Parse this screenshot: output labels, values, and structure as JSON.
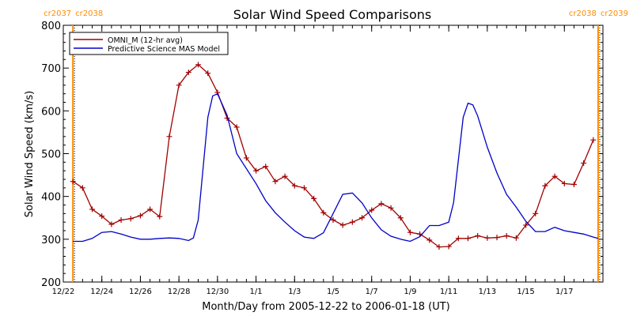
{
  "chart_data": {
    "type": "line",
    "title": "Solar Wind Speed Comparisons",
    "xlabel": "Month/Day from 2005-12-22 to 2006-01-18 (UT)",
    "ylabel": "Solar Wind Speed (km/s)",
    "xlim": [
      "2005-12-22",
      "2006-01-19"
    ],
    "ylim": [
      200,
      800
    ],
    "yticks": [
      200,
      300,
      400,
      500,
      600,
      700,
      800
    ],
    "xticks": [
      {
        "date": "2005-12-22",
        "label": "12/22"
      },
      {
        "date": "2005-12-24",
        "label": "12/24"
      },
      {
        "date": "2005-12-26",
        "label": "12/26"
      },
      {
        "date": "2005-12-28",
        "label": "12/28"
      },
      {
        "date": "2005-12-30",
        "label": "12/30"
      },
      {
        "date": "2006-01-01",
        "label": "1/1"
      },
      {
        "date": "2006-01-03",
        "label": "1/3"
      },
      {
        "date": "2006-01-05",
        "label": "1/5"
      },
      {
        "date": "2006-01-07",
        "label": "1/7"
      },
      {
        "date": "2006-01-09",
        "label": "1/9"
      },
      {
        "date": "2006-01-11",
        "label": "1/11"
      },
      {
        "date": "2006-01-13",
        "label": "1/13"
      },
      {
        "date": "2006-01-15",
        "label": "1/15"
      },
      {
        "date": "2006-01-17",
        "label": "1/17"
      }
    ],
    "grid": false,
    "legend": "top-left",
    "rotation_markers": [
      {
        "date": "2005-12-22 12:00",
        "label_left": "cr2037",
        "label_right": "cr2038",
        "color": "#ff8c00"
      },
      {
        "date": "2006-01-18 18:00",
        "label_left": "cr2038",
        "label_right": "cr2039",
        "color": "#ff8c00"
      }
    ],
    "series": [
      {
        "name": "OMNI_M (12-hr avg)",
        "color": "#a00000",
        "marker": "+",
        "points": [
          [
            "2005-12-22 12:00",
            435
          ],
          [
            "2005-12-23 00:00",
            420
          ],
          [
            "2005-12-23 12:00",
            370
          ],
          [
            "2005-12-24 00:00",
            354
          ],
          [
            "2005-12-24 12:00",
            335
          ],
          [
            "2005-12-25 00:00",
            345
          ],
          [
            "2005-12-25 12:00",
            348
          ],
          [
            "2005-12-26 00:00",
            355
          ],
          [
            "2005-12-26 12:00",
            370
          ],
          [
            "2005-12-27 00:00",
            353
          ],
          [
            "2005-12-27 12:00",
            540
          ],
          [
            "2005-12-28 00:00",
            660
          ],
          [
            "2005-12-28 12:00",
            690
          ],
          [
            "2005-12-29 00:00",
            708
          ],
          [
            "2005-12-29 12:00",
            688
          ],
          [
            "2005-12-30 00:00",
            643
          ],
          [
            "2005-12-30 12:00",
            583
          ],
          [
            "2005-12-31 00:00",
            562
          ],
          [
            "2005-12-31 12:00",
            490
          ],
          [
            "2006-01-01 00:00",
            460
          ],
          [
            "2006-01-01 12:00",
            470
          ],
          [
            "2006-01-02 00:00",
            435
          ],
          [
            "2006-01-02 12:00",
            447
          ],
          [
            "2006-01-03 00:00",
            425
          ],
          [
            "2006-01-03 12:00",
            420
          ],
          [
            "2006-01-04 00:00",
            395
          ],
          [
            "2006-01-04 12:00",
            362
          ],
          [
            "2006-01-05 00:00",
            345
          ],
          [
            "2006-01-05 12:00",
            333
          ],
          [
            "2006-01-06 00:00",
            340
          ],
          [
            "2006-01-06 12:00",
            350
          ],
          [
            "2006-01-07 00:00",
            368
          ],
          [
            "2006-01-07 12:00",
            383
          ],
          [
            "2006-01-08 00:00",
            373
          ],
          [
            "2006-01-08 12:00",
            350
          ],
          [
            "2006-01-09 00:00",
            316
          ],
          [
            "2006-01-09 12:00",
            312
          ],
          [
            "2006-01-10 00:00",
            298
          ],
          [
            "2006-01-10 12:00",
            282
          ],
          [
            "2006-01-11 00:00",
            283
          ],
          [
            "2006-01-11 12:00",
            302
          ],
          [
            "2006-01-12 00:00",
            302
          ],
          [
            "2006-01-12 12:00",
            308
          ],
          [
            "2006-01-13 00:00",
            303
          ],
          [
            "2006-01-13 12:00",
            304
          ],
          [
            "2006-01-14 00:00",
            308
          ],
          [
            "2006-01-14 12:00",
            303
          ],
          [
            "2006-01-15 00:00",
            333
          ],
          [
            "2006-01-15 12:00",
            360
          ],
          [
            "2006-01-16 00:00",
            425
          ],
          [
            "2006-01-16 12:00",
            447
          ],
          [
            "2006-01-17 00:00",
            430
          ],
          [
            "2006-01-17 12:00",
            428
          ],
          [
            "2006-01-18 00:00",
            478
          ],
          [
            "2006-01-18 12:00",
            532
          ]
        ]
      },
      {
        "name": "Predictive Science MAS Model",
        "color": "#0000c8",
        "marker": "none",
        "points": [
          [
            "2005-12-22 12:00",
            295
          ],
          [
            "2005-12-23 00:00",
            295
          ],
          [
            "2005-12-23 12:00",
            302
          ],
          [
            "2005-12-24 00:00",
            316
          ],
          [
            "2005-12-24 12:00",
            318
          ],
          [
            "2005-12-25 00:00",
            312
          ],
          [
            "2005-12-25 12:00",
            305
          ],
          [
            "2005-12-26 00:00",
            300
          ],
          [
            "2005-12-26 12:00",
            300
          ],
          [
            "2005-12-27 00:00",
            302
          ],
          [
            "2005-12-27 12:00",
            303
          ],
          [
            "2005-12-28 00:00",
            302
          ],
          [
            "2005-12-28 12:00",
            297
          ],
          [
            "2005-12-28 18:00",
            303
          ],
          [
            "2005-12-29 00:00",
            345
          ],
          [
            "2005-12-29 12:00",
            585
          ],
          [
            "2005-12-29 18:00",
            635
          ],
          [
            "2005-12-30 00:00",
            640
          ],
          [
            "2005-12-30 12:00",
            590
          ],
          [
            "2005-12-31 00:00",
            500
          ],
          [
            "2006-01-01 00:00",
            430
          ],
          [
            "2006-01-01 12:00",
            390
          ],
          [
            "2006-01-02 00:00",
            362
          ],
          [
            "2006-01-02 12:00",
            340
          ],
          [
            "2006-01-03 00:00",
            320
          ],
          [
            "2006-01-03 12:00",
            305
          ],
          [
            "2006-01-04 00:00",
            302
          ],
          [
            "2006-01-04 12:00",
            315
          ],
          [
            "2006-01-05 00:00",
            360
          ],
          [
            "2006-01-05 12:00",
            405
          ],
          [
            "2006-01-06 00:00",
            408
          ],
          [
            "2006-01-06 12:00",
            385
          ],
          [
            "2006-01-07 00:00",
            350
          ],
          [
            "2006-01-07 12:00",
            322
          ],
          [
            "2006-01-08 00:00",
            307
          ],
          [
            "2006-01-08 12:00",
            300
          ],
          [
            "2006-01-09 00:00",
            295
          ],
          [
            "2006-01-09 12:00",
            306
          ],
          [
            "2006-01-10 00:00",
            332
          ],
          [
            "2006-01-10 12:00",
            332
          ],
          [
            "2006-01-11 00:00",
            340
          ],
          [
            "2006-01-11 06:00",
            385
          ],
          [
            "2006-01-11 18:00",
            585
          ],
          [
            "2006-01-12 00:00",
            618
          ],
          [
            "2006-01-12 06:00",
            614
          ],
          [
            "2006-01-12 12:00",
            588
          ],
          [
            "2006-01-13 00:00",
            515
          ],
          [
            "2006-01-13 12:00",
            455
          ],
          [
            "2006-01-14 00:00",
            405
          ],
          [
            "2006-01-14 12:00",
            375
          ],
          [
            "2006-01-15 00:00",
            342
          ],
          [
            "2006-01-15 12:00",
            318
          ],
          [
            "2006-01-16 00:00",
            318
          ],
          [
            "2006-01-16 12:00",
            328
          ],
          [
            "2006-01-17 00:00",
            320
          ],
          [
            "2006-01-17 12:00",
            316
          ],
          [
            "2006-01-18 00:00",
            312
          ],
          [
            "2006-01-18 12:00",
            305
          ],
          [
            "2006-01-18 18:00",
            302
          ]
        ]
      }
    ]
  }
}
